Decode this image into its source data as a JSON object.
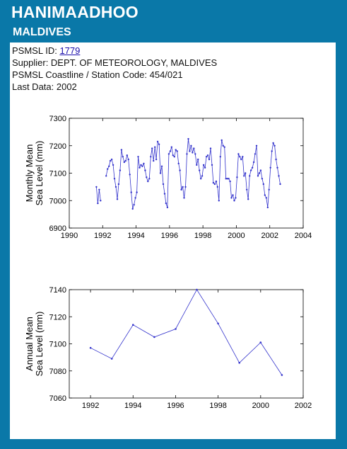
{
  "station": {
    "name": "HANIMAADHOO",
    "country": "MALDIVES"
  },
  "info": {
    "id_label": "PSMSL ID: ",
    "id_value": "1779",
    "supplier": "Supplier: DEPT. OF METEOROLOGY, MALDIVES",
    "coastline": "PSMSL Coastline / Station Code: 454/021",
    "last_data": "Last Data: 2002"
  },
  "colors": {
    "header_bg": "#0a78a8",
    "series": "#3333cc"
  },
  "chart_data": [
    {
      "type": "line",
      "ylabel_line1": "Monthly Mean",
      "ylabel_line2": "Sea Level (mm)",
      "xlim": [
        1990,
        2004
      ],
      "ylim": [
        6900,
        7300
      ],
      "xticks": [
        1990,
        1992,
        1994,
        1996,
        1998,
        2000,
        2002,
        2004
      ],
      "yticks": [
        6900,
        7000,
        7100,
        7200,
        7300
      ],
      "grid": false,
      "segments": [
        {
          "x": [
            1991.625,
            1991.708,
            1991.792,
            1991.875
          ],
          "y": [
            7050,
            6990,
            7040,
            7000
          ]
        },
        {
          "x": [
            1992.208,
            1992.292,
            1992.375,
            1992.458,
            1992.542,
            1992.625,
            1992.708,
            1992.792,
            1992.875,
            1992.958,
            1993.042,
            1993.125,
            1993.208,
            1993.292,
            1993.375,
            1993.458,
            1993.542,
            1993.625,
            1993.708,
            1993.792,
            1993.875,
            1993.958,
            1994.042,
            1994.125,
            1994.208,
            1994.292,
            1994.375,
            1994.458,
            1994.542,
            1994.625,
            1994.708,
            1994.792,
            1994.875,
            1994.958,
            1995.042,
            1995.125,
            1995.208,
            1995.292,
            1995.375,
            1995.458,
            1995.542,
            1995.625,
            1995.708,
            1995.792,
            1995.875,
            1995.958,
            1996.042,
            1996.125,
            1996.208,
            1996.292,
            1996.375,
            1996.458,
            1996.542,
            1996.625,
            1996.708,
            1996.792,
            1996.875,
            1996.958,
            1997.042,
            1997.125,
            1997.208,
            1997.292,
            1997.375,
            1997.458,
            1997.542,
            1997.625,
            1997.708,
            1997.792,
            1997.875,
            1997.958,
            1998.042,
            1998.125,
            1998.208,
            1998.292,
            1998.375,
            1998.458,
            1998.542,
            1998.625,
            1998.708,
            1998.792,
            1998.875,
            1998.958,
            1999.042,
            1999.125,
            1999.208,
            1999.292,
            1999.375,
            1999.458,
            1999.542,
            1999.625,
            1999.708,
            1999.792,
            1999.875,
            1999.958,
            2000.042,
            2000.125,
            2000.208,
            2000.292,
            2000.375,
            2000.458,
            2000.542,
            2000.625,
            2000.708,
            2000.792,
            2000.875,
            2000.958,
            2001.042,
            2001.125,
            2001.208,
            2001.292,
            2001.375,
            2001.458,
            2001.542,
            2001.625,
            2001.708,
            2001.792,
            2001.875,
            2001.958,
            2002.042,
            2002.125,
            2002.208,
            2002.292,
            2002.375,
            2002.458,
            2002.542,
            2002.625
          ],
          "y": [
            7090,
            7115,
            7125,
            7145,
            7150,
            7130,
            7080,
            7050,
            7005,
            7060,
            7110,
            7185,
            7160,
            7140,
            7145,
            7165,
            7150,
            7095,
            7030,
            6970,
            6985,
            7010,
            7030,
            7160,
            7120,
            7130,
            7125,
            7135,
            7110,
            7085,
            7070,
            7080,
            7160,
            7190,
            7145,
            7195,
            7150,
            7215,
            7205,
            7100,
            7125,
            7060,
            7025,
            6990,
            6975,
            7170,
            7180,
            7195,
            7165,
            7160,
            7185,
            7180,
            7135,
            7110,
            7040,
            7050,
            7010,
            7050,
            7170,
            7225,
            7180,
            7200,
            7175,
            7190,
            7170,
            7130,
            7150,
            7110,
            7080,
            7090,
            7130,
            7120,
            7160,
            7165,
            7150,
            7190,
            7130,
            7065,
            7060,
            7070,
            7050,
            7000,
            7160,
            7220,
            7200,
            7195,
            7080,
            7080,
            7080,
            7070,
            7010,
            7020,
            7000,
            7010,
            7085,
            7170,
            7160,
            7150,
            7160,
            7090,
            7100,
            7040,
            7005,
            7090,
            7110,
            7120,
            7140,
            7170,
            7200,
            7090,
            7100,
            7110,
            7080,
            7060,
            7020,
            7010,
            6975,
            7040,
            7120,
            7180,
            7210,
            7200,
            7150,
            7120,
            7090,
            7060
          ]
        }
      ]
    },
    {
      "type": "line",
      "ylabel_line1": "Annual Mean",
      "ylabel_line2": "Sea Level (mm)",
      "xlim": [
        1991,
        2002
      ],
      "ylim": [
        7060,
        7140
      ],
      "xticks": [
        1992,
        1994,
        1996,
        1998,
        2000,
        2002
      ],
      "yticks": [
        7060,
        7080,
        7100,
        7120,
        7140
      ],
      "grid": false,
      "x": [
        1992,
        1993,
        1994,
        1995,
        1996,
        1997,
        1998,
        1999,
        2000,
        2001
      ],
      "y": [
        7097,
        7089,
        7114,
        7105,
        7111,
        7140,
        7115,
        7086,
        7101,
        7077
      ]
    }
  ]
}
